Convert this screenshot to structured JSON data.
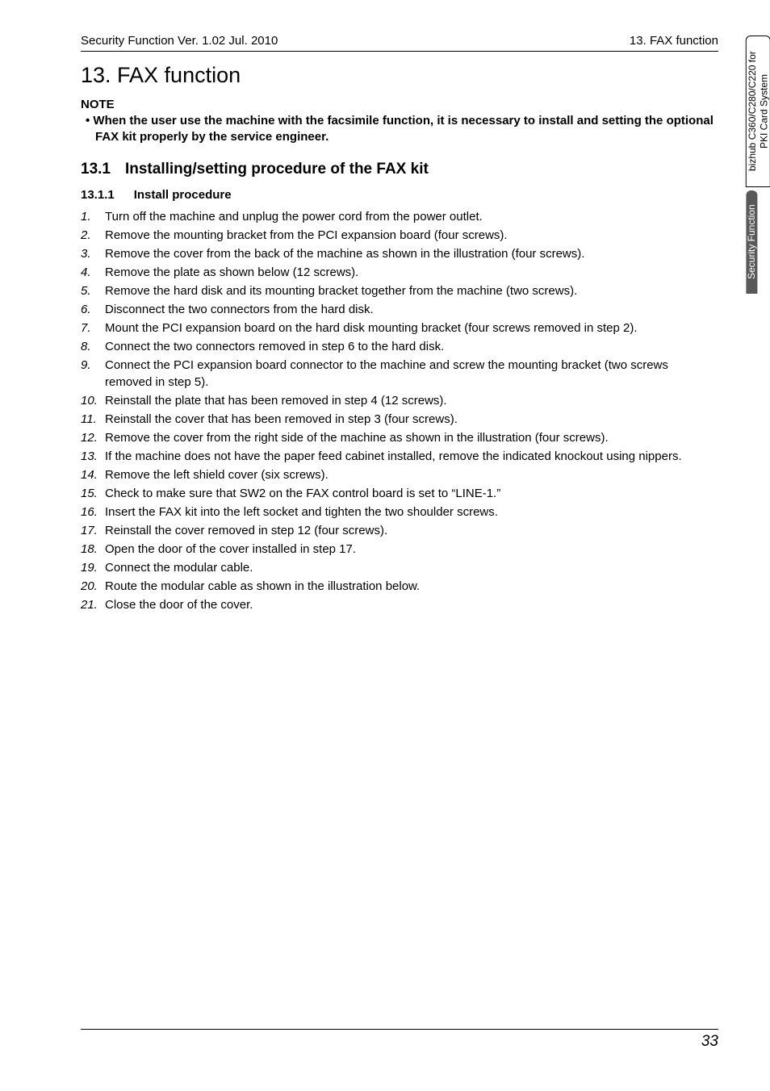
{
  "header": {
    "left": "Security Function Ver. 1.02 Jul. 2010",
    "right": "13. FAX function"
  },
  "tabs": {
    "light": "bizhub C360/C280/C220\nfor PKI Card System",
    "dark": "Security Function"
  },
  "title": "13.  FAX function",
  "note": {
    "label": "NOTE",
    "text": "When the user use the machine with the facsimile function, it is necessary to install and setting the optional FAX kit properly by the service engineer."
  },
  "section": {
    "num": "13.1",
    "title": "Installing/setting procedure of the FAX kit"
  },
  "subsection": {
    "num": "13.1.1",
    "title": "Install procedure"
  },
  "steps": [
    {
      "n": "1.",
      "t": "Turn off the machine and unplug the power cord from the power outlet."
    },
    {
      "n": "2.",
      "t": "Remove the mounting bracket from the PCI expansion board (four screws)."
    },
    {
      "n": "3.",
      "t": "Remove the cover from the back of the machine as shown in the illustration (four screws)."
    },
    {
      "n": "4.",
      "t": "Remove the plate as shown below (12 screws)."
    },
    {
      "n": "5.",
      "t": "Remove the hard disk and its mounting bracket together from the machine (two screws)."
    },
    {
      "n": "6.",
      "t": "Disconnect the two connectors from the hard disk."
    },
    {
      "n": "7.",
      "t": "Mount the PCI expansion board on the hard disk mounting bracket (four screws removed in step 2)."
    },
    {
      "n": "8.",
      "t": "Connect the two connectors removed in step 6 to the hard disk."
    },
    {
      "n": "9.",
      "t": "Connect the PCI expansion board connector to the machine and screw the mounting bracket (two screws removed in step 5)."
    },
    {
      "n": "10.",
      "t": "Reinstall the plate that has been removed in step 4 (12 screws)."
    },
    {
      "n": "11.",
      "t": "Reinstall the cover that has been removed in step 3 (four screws)."
    },
    {
      "n": "12.",
      "t": "Remove the cover from the right side of the machine as shown in the illustration (four screws)."
    },
    {
      "n": "13.",
      "t": "If the machine does not have the paper feed cabinet installed, remove the indicated knockout using nippers."
    },
    {
      "n": "14.",
      "t": "Remove the left shield cover (six screws)."
    },
    {
      "n": "15.",
      "t": "Check to make sure that SW2 on the FAX control board is set to “LINE-1.”"
    },
    {
      "n": "16.",
      "t": "Insert the FAX kit into the left socket and tighten the two shoulder screws."
    },
    {
      "n": "17.",
      "t": "Reinstall the cover removed in step 12 (four screws)."
    },
    {
      "n": "18.",
      "t": "Open the door of the cover installed in step 17."
    },
    {
      "n": "19.",
      "t": "Connect the modular cable."
    },
    {
      "n": "20.",
      "t": "Route the modular cable as shown in the illustration below."
    },
    {
      "n": "21.",
      "t": "Close the door of the cover."
    }
  ],
  "page_number": "33"
}
